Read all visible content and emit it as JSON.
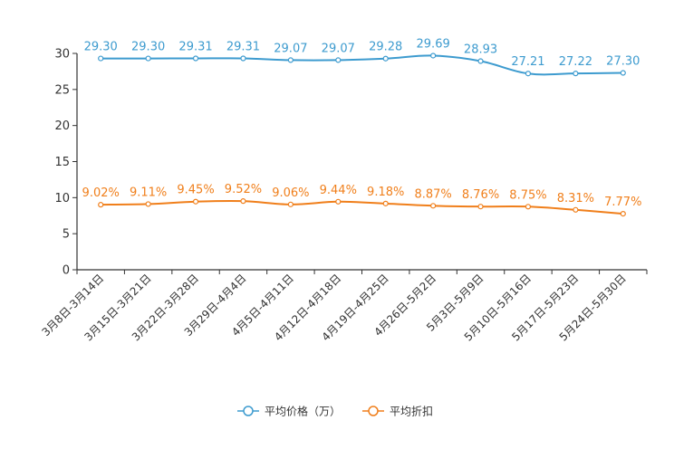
{
  "chart_data": {
    "type": "line",
    "title": "",
    "xlabel": "",
    "ylabel": "",
    "ylim": [
      0,
      30
    ],
    "yticks": [
      0,
      5,
      10,
      15,
      20,
      25,
      30
    ],
    "grid": false,
    "legend_position": "bottom",
    "categories": [
      "3月8日-3月14日",
      "3月15日-3月21日",
      "3月22日-3月28日",
      "3月29日-4月4日",
      "4月5日-4月11日",
      "4月12日-4月18日",
      "4月19日-4月25日",
      "4月26日-5月2日",
      "5月3日-5月9日",
      "5月10日-5月16日",
      "5月17日-5月23日",
      "5月24日-5月30日"
    ],
    "series": [
      {
        "name": "平均价格（万）",
        "color": "#3d9bcf",
        "values": [
          29.3,
          29.3,
          29.31,
          29.31,
          29.07,
          29.07,
          29.28,
          29.69,
          28.93,
          27.21,
          27.22,
          27.3
        ],
        "labels": [
          "29.30",
          "29.30",
          "29.31",
          "29.31",
          "29.07",
          "29.07",
          "29.28",
          "29.69",
          "28.93",
          "27.21",
          "27.22",
          "27.30"
        ]
      },
      {
        "name": "平均折扣",
        "color": "#f07f1b",
        "values": [
          9.02,
          9.11,
          9.45,
          9.52,
          9.06,
          9.44,
          9.18,
          8.87,
          8.76,
          8.75,
          8.31,
          7.77
        ],
        "labels": [
          "9.02%",
          "9.11%",
          "9.45%",
          "9.52%",
          "9.06%",
          "9.44%",
          "9.18%",
          "8.87%",
          "8.76%",
          "8.75%",
          "8.31%",
          "7.77%"
        ]
      }
    ]
  }
}
